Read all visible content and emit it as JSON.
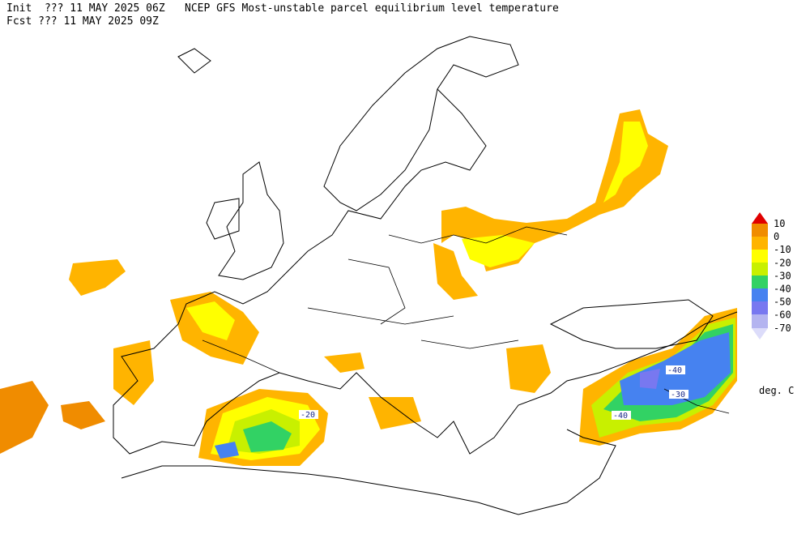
{
  "header": {
    "init": "Init  ??? 11 MAY 2025 06Z",
    "title": "NCEP GFS Most-unstable parcel equilibrium level temperature",
    "fcst": "Fcst ??? 11 MAY 2025 09Z"
  },
  "legend": {
    "labels": [
      10,
      0,
      -10,
      -20,
      -30,
      -40,
      -50,
      -60,
      -70
    ],
    "unit": "deg. C"
  },
  "contour_labels": [
    -20,
    -40,
    -30,
    -40
  ]
}
